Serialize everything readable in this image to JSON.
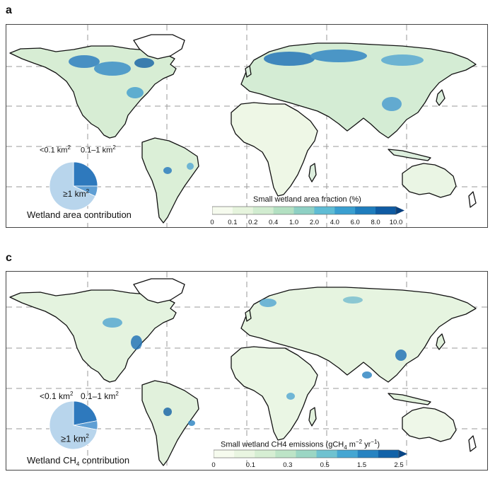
{
  "panels": [
    {
      "letter": "a",
      "colorbar": {
        "title": "Small wetland area fraction (%)",
        "ticks": [
          "0",
          "0.1",
          "0.2",
          "0.4",
          "1.0",
          "2.0",
          "4.0",
          "6.0",
          "8.0",
          "10.0"
        ],
        "colors": [
          "#f6fbee",
          "#e6f4dd",
          "#d1ecd0",
          "#b3e0c2",
          "#8ed0c4",
          "#5fbcd4",
          "#3a9fd0",
          "#1f7dbd",
          "#0f5ba3",
          "#08407f"
        ]
      },
      "pie": {
        "label_small": "<0.1 km",
        "label_small_sup": "2",
        "label_mid": "0.1–1 km",
        "label_mid_sup": "2",
        "label_large": "≥1 km",
        "label_large_sup": "2",
        "caption": "Wetland area contribution",
        "shares": [
          {
            "class": "<0.1 km2",
            "fraction": 0.25,
            "color": "#2e79bd"
          },
          {
            "class": "0.1–1 km2",
            "fraction": 0.07,
            "color": "#5f9fd4"
          },
          {
            "class": "≥1 km2",
            "fraction": 0.68,
            "color": "#b8d5ec"
          }
        ]
      }
    },
    {
      "letter": "c",
      "colorbar": {
        "title_pre": "Small wetland CH4 emissions (gCH",
        "title_sub": "4",
        "title_mid": " m",
        "title_sup1": "−2",
        "title_mid2": " yr",
        "title_sup2": "−1",
        "title_end": ")",
        "ticks": [
          "0",
          "",
          "0.1",
          "",
          "0.3",
          "",
          "0.5",
          "",
          "1.5",
          "",
          "2.5"
        ],
        "colors": [
          "#f6fbee",
          "#e9f5e1",
          "#d6eed3",
          "#bde4c7",
          "#9bd6c4",
          "#6fc2d0",
          "#45a6d2",
          "#2783c1",
          "#1262a8",
          "#084585"
        ]
      },
      "pie": {
        "label_small": "<0.1 km",
        "label_small_sup": "2",
        "label_mid": "0.1–1 km",
        "label_mid_sup": "2",
        "label_large": "≥1 km",
        "label_large_sup": "2",
        "caption_pre": "Wetland CH",
        "caption_sub": "4",
        "caption_post": " contribution",
        "shares": [
          {
            "class": "<0.1 km2",
            "fraction": 0.22,
            "color": "#2e79bd"
          },
          {
            "class": "0.1–1 km2",
            "fraction": 0.06,
            "color": "#5f9fd4"
          },
          {
            "class": "≥1 km2",
            "fraction": 0.72,
            "color": "#b8d5ec"
          }
        ]
      }
    }
  ]
}
